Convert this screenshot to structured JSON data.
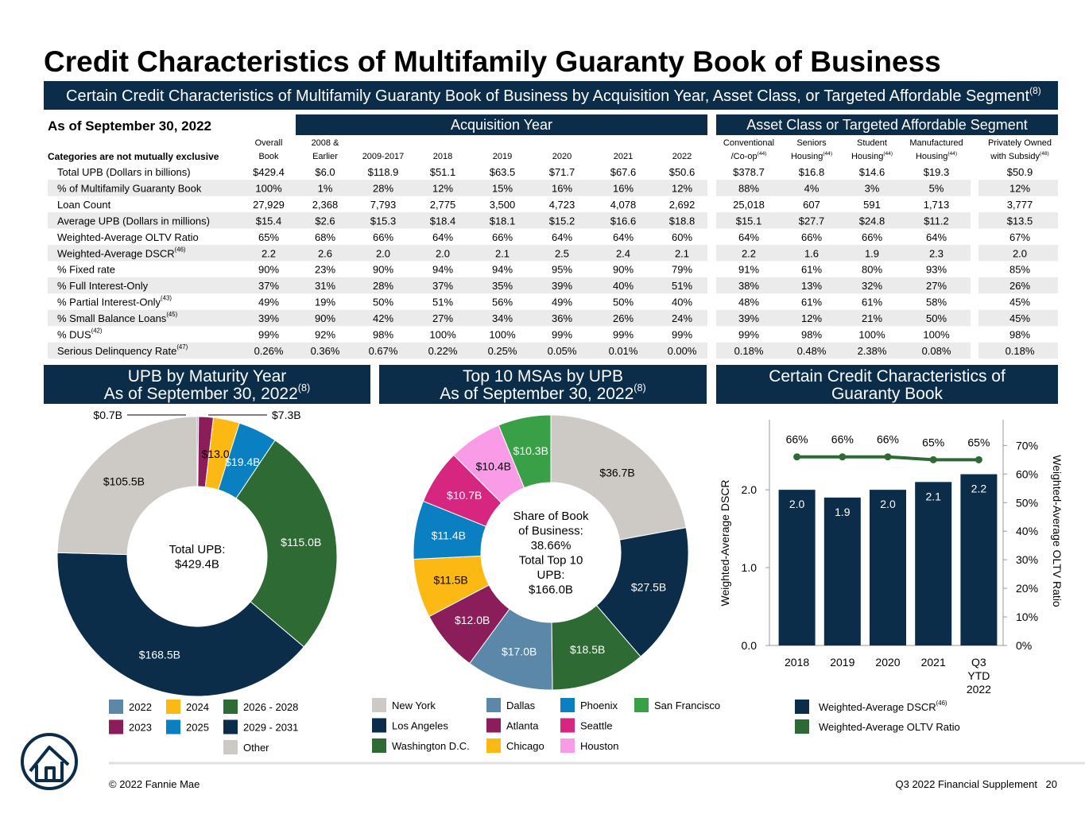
{
  "title": "Credit Characteristics of Multifamily Guaranty Book of Business",
  "banner": {
    "text": "Certain Credit Characteristics of Multifamily Guaranty Book of Business by Acquisition Year, Asset Class, or Targeted Affordable Segment",
    "note": "(8)"
  },
  "as_of": "As of September 30, 2022",
  "table": {
    "groups": [
      "Acquisition Year",
      "Asset Class or Targeted Affordable Segment"
    ],
    "corner": "Categories are not mutually exclusive",
    "columns": [
      {
        "top": "Overall",
        "bottom": "Book"
      },
      {
        "top": "2008 &",
        "bottom": "Earlier"
      },
      {
        "bottom": "2009-2017"
      },
      {
        "bottom": "2018"
      },
      {
        "bottom": "2019"
      },
      {
        "bottom": "2020"
      },
      {
        "bottom": "2021"
      },
      {
        "bottom": "2022"
      },
      {
        "top": "Conventional",
        "bottom": "/Co-op",
        "note": "(44)"
      },
      {
        "top": "Seniors",
        "bottom": "Housing",
        "note": "(44)"
      },
      {
        "top": "Student",
        "bottom": "Housing",
        "note": "(44)"
      },
      {
        "top": "Manufactured",
        "bottom": "Housing",
        "note": "(44)"
      },
      {
        "top": "Privately Owned",
        "bottom": "with Subsidy",
        "note": "(48)"
      }
    ],
    "rows": [
      {
        "label": "Total UPB (Dollars in billions)",
        "cells": [
          "$429.4",
          "$6.0",
          "$118.9",
          "$51.1",
          "$63.5",
          "$71.7",
          "$67.6",
          "$50.6",
          "$378.7",
          "$16.8",
          "$14.6",
          "$19.3",
          "$50.9"
        ]
      },
      {
        "label": "% of Multifamily Guaranty Book",
        "cells": [
          "100%",
          "1%",
          "28%",
          "12%",
          "15%",
          "16%",
          "16%",
          "12%",
          "88%",
          "4%",
          "3%",
          "5%",
          "12%"
        ]
      },
      {
        "label": "Loan Count",
        "cells": [
          "27,929",
          "2,368",
          "7,793",
          "2,775",
          "3,500",
          "4,723",
          "4,078",
          "2,692",
          "25,018",
          "607",
          "591",
          "1,713",
          "3,777"
        ]
      },
      {
        "label": "Average UPB (Dollars in millions)",
        "cells": [
          "$15.4",
          "$2.6",
          "$15.3",
          "$18.4",
          "$18.1",
          "$15.2",
          "$16.6",
          "$18.8",
          "$15.1",
          "$27.7",
          "$24.8",
          "$11.2",
          "$13.5"
        ]
      },
      {
        "label": "Weighted-Average OLTV Ratio",
        "cells": [
          "65%",
          "68%",
          "66%",
          "64%",
          "66%",
          "64%",
          "64%",
          "60%",
          "64%",
          "66%",
          "66%",
          "64%",
          "67%"
        ]
      },
      {
        "label": "Weighted-Average DSCR",
        "note": "(46)",
        "cells": [
          "2.2",
          "2.6",
          "2.0",
          "2.0",
          "2.1",
          "2.5",
          "2.4",
          "2.1",
          "2.2",
          "1.6",
          "1.9",
          "2.3",
          "2.0"
        ]
      },
      {
        "label": "% Fixed rate",
        "cells": [
          "90%",
          "23%",
          "90%",
          "94%",
          "94%",
          "95%",
          "90%",
          "79%",
          "91%",
          "61%",
          "80%",
          "93%",
          "85%"
        ]
      },
      {
        "label": "% Full Interest-Only",
        "cells": [
          "37%",
          "31%",
          "28%",
          "37%",
          "35%",
          "39%",
          "40%",
          "51%",
          "38%",
          "13%",
          "32%",
          "27%",
          "26%"
        ]
      },
      {
        "label": "% Partial Interest-Only",
        "note": "(43)",
        "cells": [
          "49%",
          "19%",
          "50%",
          "51%",
          "56%",
          "49%",
          "50%",
          "40%",
          "48%",
          "61%",
          "61%",
          "58%",
          "45%"
        ]
      },
      {
        "label": "% Small Balance Loans",
        "note": "(45)",
        "cells": [
          "39%",
          "90%",
          "42%",
          "27%",
          "34%",
          "36%",
          "26%",
          "24%",
          "39%",
          "12%",
          "21%",
          "50%",
          "45%"
        ]
      },
      {
        "label": "% DUS",
        "note": "(42)",
        "cells": [
          "99%",
          "92%",
          "98%",
          "100%",
          "100%",
          "99%",
          "99%",
          "99%",
          "99%",
          "98%",
          "100%",
          "100%",
          "98%"
        ]
      },
      {
        "label": "Serious Delinquency Rate",
        "note": "(47)",
        "cells": [
          "0.26%",
          "0.36%",
          "0.67%",
          "0.22%",
          "0.25%",
          "0.05%",
          "0.01%",
          "0.00%",
          "0.18%",
          "0.48%",
          "2.38%",
          "0.08%",
          "0.18%"
        ]
      }
    ]
  },
  "chart_data": [
    {
      "type": "donut",
      "title_lines": [
        "UPB by Maturity Year",
        "As of September 30, 2022"
      ],
      "title_note": "(8)",
      "center_lines": [
        "Total UPB:",
        "$429.4B"
      ],
      "categories": [
        "2022",
        "2023",
        "2024",
        "2025",
        "2026 - 2028",
        "2029 - 2031",
        "Other"
      ],
      "values": [
        0.7,
        7.3,
        13.0,
        19.4,
        115.0,
        168.5,
        105.5
      ],
      "value_labels": [
        "$0.7B",
        "$7.3B",
        "$13.0B",
        "$19.4B",
        "$115.0B",
        "$168.5B",
        "$105.5B"
      ],
      "colors": [
        "#5b88a8",
        "#8b1d5a",
        "#fdb913",
        "#0a7fc2",
        "#2e6b34",
        "#0b2d4a",
        "#cdc9c4"
      ]
    },
    {
      "type": "donut",
      "title_lines": [
        "Top 10 MSAs by UPB",
        "As of September 30, 2022"
      ],
      "title_note": "(8)",
      "center_lines": [
        "Share of Book",
        "of Business:",
        "38.66%",
        "Total Top 10",
        "UPB:",
        "$166.0B"
      ],
      "categories": [
        "New York",
        "Los Angeles",
        "Washington D.C.",
        "Dallas",
        "Atlanta",
        "Chicago",
        "Phoenix",
        "Seattle",
        "Houston",
        "San Francisco"
      ],
      "values": [
        36.7,
        27.5,
        18.5,
        17.0,
        12.0,
        11.5,
        11.4,
        10.7,
        10.4,
        10.3
      ],
      "value_labels": [
        "$36.7B",
        "$27.5B",
        "$18.5B",
        "$17.0B",
        "$12.0B",
        "$11.5B",
        "$11.4B",
        "$10.7B",
        "$10.4B",
        "$10.3B"
      ],
      "colors": [
        "#cdc9c4",
        "#0b2d4a",
        "#2e6b34",
        "#5b88a8",
        "#8b1d5a",
        "#fdb913",
        "#0a7fc2",
        "#d6267f",
        "#f99be6",
        "#3aa047"
      ]
    },
    {
      "type": "bar_line",
      "title_lines": [
        "Certain Credit Characteristics of",
        "Guaranty Book"
      ],
      "categories": [
        "2018",
        "2019",
        "2020",
        "2021",
        "Q3 YTD 2022"
      ],
      "series": [
        {
          "name": "Weighted-Average DSCR",
          "name_note": "(46)",
          "type": "bar",
          "color": "#0b2d4a",
          "values": [
            2.0,
            1.9,
            2.0,
            2.1,
            2.2
          ],
          "value_labels": [
            "2.0",
            "1.9",
            "2.0",
            "2.1",
            "2.2"
          ]
        },
        {
          "name": "Weighted-Average OLTV Ratio",
          "type": "line",
          "axis": "y2",
          "color": "#2e6b34",
          "values": [
            66,
            66,
            66,
            65,
            65
          ],
          "value_labels": [
            "66%",
            "66%",
            "66%",
            "65%",
            "65%"
          ]
        }
      ],
      "ylim": [
        0,
        2.9
      ],
      "yticks": [
        {
          "value": 0,
          "label": "0.0"
        },
        {
          "value": 1,
          "label": "1.0"
        },
        {
          "value": 2,
          "label": "2.0"
        }
      ],
      "y2lim": [
        0,
        79
      ],
      "y2ticks": [
        {
          "value": 0,
          "label": "0%"
        },
        {
          "value": 10,
          "label": "10%"
        },
        {
          "value": 20,
          "label": "20%"
        },
        {
          "value": 30,
          "label": "30%"
        },
        {
          "value": 40,
          "label": "40%"
        },
        {
          "value": 50,
          "label": "50%"
        },
        {
          "value": 60,
          "label": "60%"
        },
        {
          "value": 70,
          "label": "70%"
        }
      ],
      "y_label": "Weighted-Average DSCR",
      "y2_label": "Weighted-Average OLTV Ratio"
    }
  ],
  "footer": {
    "left": "© 2022 Fannie Mae",
    "right": "Q3 2022 Financial Supplement",
    "page": "20"
  }
}
